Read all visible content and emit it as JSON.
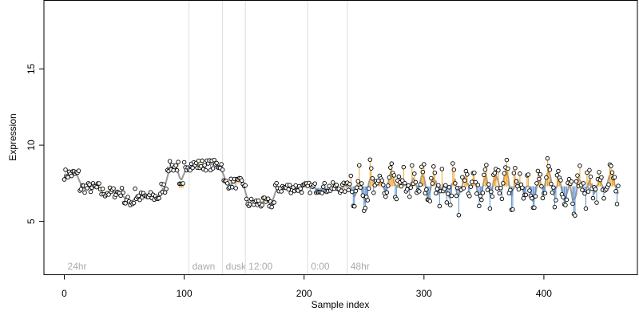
{
  "chart_data": {
    "type": "scatter",
    "title": "",
    "xlabel": "Sample index",
    "ylabel": "Expression",
    "xlim": [
      -17,
      478
    ],
    "ylim": [
      1.5,
      19.5
    ],
    "x_ticks": [
      0,
      100,
      200,
      300,
      400
    ],
    "y_ticks": [
      5,
      10,
      15
    ],
    "grid": false,
    "legend": "none",
    "colors": {
      "axis": "#000000",
      "region_line": "#dddddd",
      "region_label": "#aaaaaa",
      "point_fill": "#ffffff",
      "point_stroke": "#000000",
      "trend": "#999999",
      "above_stick": "#f0a020",
      "below_stick": "#5a8fd0"
    },
    "regions": [
      {
        "label": "24hr",
        "x": 0
      },
      {
        "label": "dawn",
        "x": 104
      },
      {
        "label": "dusk",
        "x": 132
      },
      {
        "label": "12:00",
        "x": 151
      },
      {
        "label": "0:00",
        "x": 203
      },
      {
        "label": "48hr",
        "x": 236
      }
    ],
    "series_summary": [
      {
        "x_range": [
          0,
          12
        ],
        "approx_value": 8.1
      },
      {
        "x_range": [
          13,
          30
        ],
        "approx_value": 7.2
      },
      {
        "x_range": [
          30,
          48
        ],
        "approx_value": 6.9
      },
      {
        "x_range": [
          50,
          58
        ],
        "approx_value": 6.3
      },
      {
        "x_range": [
          60,
          80
        ],
        "approx_value": 6.6
      },
      {
        "x_range": [
          86,
          95
        ],
        "approx_value": 8.6
      },
      {
        "x_range": [
          100,
          132
        ],
        "approx_value": 8.7
      },
      {
        "x_range": [
          133,
          150
        ],
        "approx_value": 7.5
      },
      {
        "x_range": [
          152,
          175
        ],
        "approx_value": 6.2
      },
      {
        "x_range": [
          175,
          235
        ],
        "approx_value": 7.2
      },
      {
        "x_range": [
          236,
          462
        ],
        "approx_value": 7.3
      }
    ],
    "y_range_shown": [
      5.0,
      9.4
    ]
  }
}
